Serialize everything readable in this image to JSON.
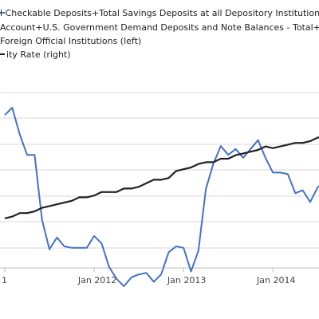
{
  "chart_data": {
    "type": "line",
    "legend": [
      {
        "text": "l Checkable Deposits+Total Savings Deposits at all Depository Institutions+Depo",
        "color": "#4472c4",
        "marker": "line"
      },
      {
        "text": "Account+U.S. Government Demand Deposits and Note Balances - Total+Demand",
        "color": "#4472c4",
        "marker": "none"
      },
      {
        "text": "Foreign Official Institutions (left)",
        "color": "#4472c4",
        "marker": "none"
      },
      {
        "text": "ity Rate (right)",
        "color": "#222222",
        "marker": "line"
      }
    ],
    "x_tick_labels": [
      "1",
      "Jan 2012",
      "Jan 2013",
      "Jan 2014"
    ],
    "x_ticks": [
      0,
      12,
      24,
      36
    ],
    "xlim": [
      0,
      43
    ],
    "grid": true,
    "series": [
      {
        "name": "Foreign Official Institutions (left)",
        "color": "#4472c4",
        "x": [
          0,
          1,
          2,
          3,
          4,
          5,
          6,
          7,
          8,
          9,
          10,
          11,
          12,
          13,
          14,
          15,
          16,
          17,
          18,
          19,
          20,
          21,
          22,
          23,
          24,
          25,
          26,
          27,
          28,
          29,
          30,
          31,
          32,
          33,
          34,
          35,
          36,
          37,
          38,
          39,
          40,
          41,
          42,
          43
        ],
        "y": [
          0.95,
          1.0,
          0.82,
          0.68,
          0.68,
          0.24,
          0.04,
          0.12,
          0.06,
          0.05,
          0.05,
          0.05,
          0.13,
          0.08,
          -0.08,
          -0.16,
          -0.21,
          -0.15,
          -0.13,
          -0.12,
          -0.18,
          -0.13,
          0.02,
          0.06,
          0.05,
          -0.11,
          0.03,
          0.45,
          0.62,
          0.74,
          0.68,
          0.72,
          0.66,
          0.72,
          0.78,
          0.66,
          0.56,
          0.56,
          0.55,
          0.42,
          0.44,
          0.36,
          0.46,
          0.5
        ]
      },
      {
        "name": "ity Rate (right)",
        "color": "#222222",
        "x": [
          0,
          1,
          2,
          3,
          4,
          5,
          6,
          7,
          8,
          9,
          10,
          11,
          12,
          13,
          14,
          15,
          16,
          17,
          18,
          19,
          20,
          21,
          22,
          23,
          24,
          25,
          26,
          27,
          28,
          29,
          30,
          31,
          32,
          33,
          34,
          35,
          36,
          37,
          38,
          39,
          40,
          41,
          42,
          43
        ],
        "y": [
          0.21,
          0.22,
          0.24,
          0.24,
          0.25,
          0.27,
          0.28,
          0.29,
          0.3,
          0.31,
          0.33,
          0.33,
          0.34,
          0.36,
          0.36,
          0.36,
          0.38,
          0.38,
          0.39,
          0.41,
          0.43,
          0.43,
          0.44,
          0.48,
          0.49,
          0.5,
          0.52,
          0.53,
          0.53,
          0.55,
          0.55,
          0.57,
          0.58,
          0.59,
          0.6,
          0.62,
          0.61,
          0.62,
          0.63,
          0.64,
          0.64,
          0.65,
          0.67,
          0.68
        ]
      }
    ]
  }
}
